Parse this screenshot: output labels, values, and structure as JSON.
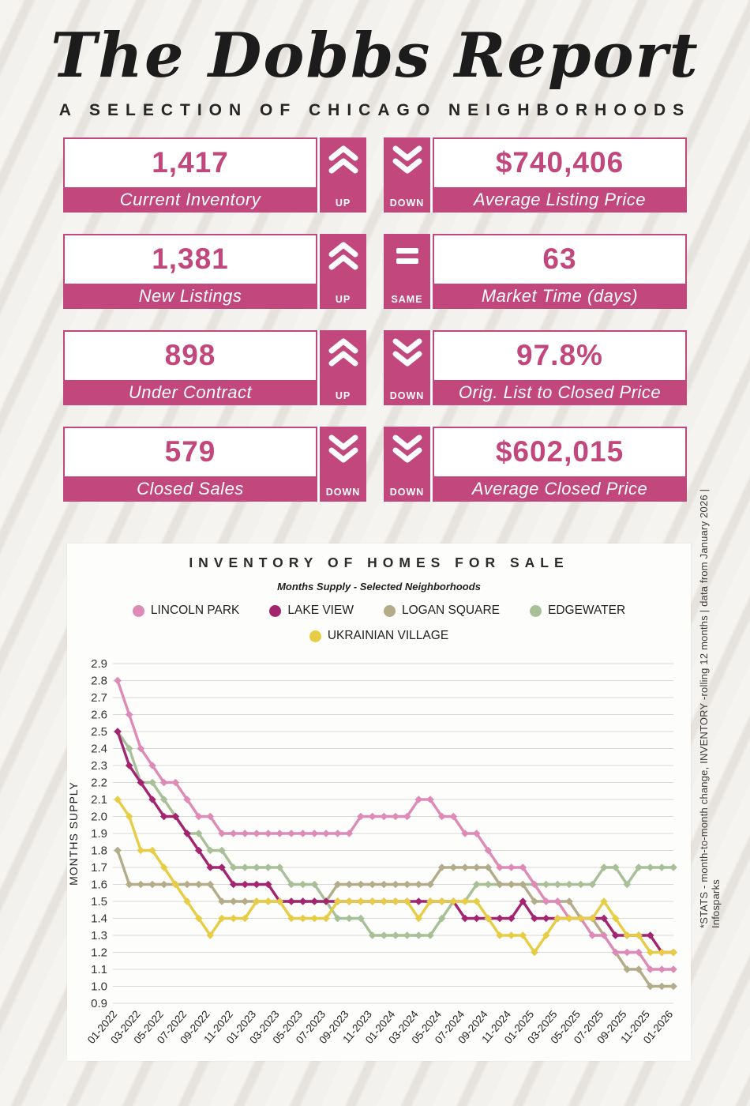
{
  "header": {
    "title": "The Dobbs Report",
    "subtitle": "A SELECTION OF CHICAGO NEIGHBORHOODS"
  },
  "colors": {
    "accent_pink": "#c1477d",
    "panel_bg": "#fdfdfc",
    "grid_line": "#d9d9d9",
    "text_dark": "#2b2b2b"
  },
  "stats": [
    {
      "value": "1,417",
      "label": "Current Inventory",
      "trend": "UP"
    },
    {
      "value": "$740,406",
      "label": "Average Listing Price",
      "trend": "DOWN"
    },
    {
      "value": "1,381",
      "label": "New Listings",
      "trend": "UP"
    },
    {
      "value": "63",
      "label": "Market Time (days)",
      "trend": "SAME"
    },
    {
      "value": "898",
      "label": "Under Contract",
      "trend": "UP"
    },
    {
      "value": "97.8%",
      "label": "Orig. List to Closed Price",
      "trend": "DOWN"
    },
    {
      "value": "579",
      "label": "Closed Sales",
      "trend": "DOWN"
    },
    {
      "value": "$602,015",
      "label": "Average Closed Price",
      "trend": "DOWN"
    }
  ],
  "footnote": "*STATS - month-to-month change, INVENTORY -rolling 12 months | data from January 2026 | Infosparks",
  "chart_data": {
    "type": "line",
    "title": "INVENTORY OF HOMES FOR SALE",
    "subtitle": "Months Supply - Selected Neighborhoods",
    "ylabel": "MONTHS SUPPLY",
    "ylim": [
      0.9,
      2.9
    ],
    "ytick_step": 0.1,
    "grid": true,
    "legend_position": "top",
    "marker": "diamond",
    "xtick_label_every": 2,
    "x": [
      "01-2022",
      "02-2022",
      "03-2022",
      "04-2022",
      "05-2022",
      "06-2022",
      "07-2022",
      "08-2022",
      "09-2022",
      "10-2022",
      "11-2022",
      "12-2022",
      "01-2023",
      "02-2023",
      "03-2023",
      "04-2023",
      "05-2023",
      "06-2023",
      "07-2023",
      "08-2023",
      "09-2023",
      "10-2023",
      "11-2023",
      "12-2023",
      "01-2024",
      "02-2024",
      "03-2024",
      "04-2024",
      "05-2024",
      "06-2024",
      "07-2024",
      "08-2024",
      "09-2024",
      "10-2024",
      "11-2024",
      "12-2024",
      "01-2025",
      "02-2025",
      "03-2025",
      "04-2025",
      "05-2025",
      "06-2025",
      "07-2025",
      "08-2025",
      "09-2025",
      "10-2025",
      "11-2025",
      "12-2025",
      "01-2026"
    ],
    "series": [
      {
        "name": "LINCOLN PARK",
        "color": "#dd8ab7",
        "values": [
          2.8,
          2.6,
          2.4,
          2.3,
          2.2,
          2.2,
          2.1,
          2.0,
          2.0,
          1.9,
          1.9,
          1.9,
          1.9,
          1.9,
          1.9,
          1.9,
          1.9,
          1.9,
          1.9,
          1.9,
          1.9,
          2.0,
          2.0,
          2.0,
          2.0,
          2.0,
          2.1,
          2.1,
          2.0,
          2.0,
          1.9,
          1.9,
          1.8,
          1.7,
          1.7,
          1.7,
          1.6,
          1.5,
          1.5,
          1.4,
          1.4,
          1.3,
          1.3,
          1.2,
          1.2,
          1.2,
          1.1,
          1.1,
          1.1
        ]
      },
      {
        "name": "LAKE VIEW",
        "color": "#a3246f",
        "values": [
          2.5,
          2.3,
          2.2,
          2.1,
          2.0,
          2.0,
          1.9,
          1.8,
          1.7,
          1.7,
          1.6,
          1.6,
          1.6,
          1.6,
          1.5,
          1.5,
          1.5,
          1.5,
          1.5,
          1.5,
          1.5,
          1.5,
          1.5,
          1.5,
          1.5,
          1.5,
          1.5,
          1.5,
          1.5,
          1.5,
          1.4,
          1.4,
          1.4,
          1.4,
          1.4,
          1.5,
          1.4,
          1.4,
          1.4,
          1.4,
          1.4,
          1.4,
          1.4,
          1.3,
          1.3,
          1.3,
          1.3,
          1.2,
          1.2
        ]
      },
      {
        "name": "LOGAN SQUARE",
        "color": "#b3ab89",
        "values": [
          1.8,
          1.6,
          1.6,
          1.6,
          1.6,
          1.6,
          1.6,
          1.6,
          1.6,
          1.5,
          1.5,
          1.5,
          1.5,
          1.5,
          1.5,
          1.5,
          1.5,
          1.5,
          1.5,
          1.6,
          1.6,
          1.6,
          1.6,
          1.6,
          1.6,
          1.6,
          1.6,
          1.6,
          1.7,
          1.7,
          1.7,
          1.7,
          1.7,
          1.6,
          1.6,
          1.6,
          1.5,
          1.5,
          1.5,
          1.5,
          1.4,
          1.4,
          1.3,
          1.2,
          1.1,
          1.1,
          1.0,
          1.0,
          1.0
        ]
      },
      {
        "name": "EDGEWATER",
        "color": "#a7c098",
        "values": [
          2.5,
          2.4,
          2.2,
          2.2,
          2.1,
          2.0,
          1.9,
          1.9,
          1.8,
          1.8,
          1.7,
          1.7,
          1.7,
          1.7,
          1.7,
          1.6,
          1.6,
          1.6,
          1.5,
          1.4,
          1.4,
          1.4,
          1.3,
          1.3,
          1.3,
          1.3,
          1.3,
          1.3,
          1.4,
          1.5,
          1.5,
          1.6,
          1.6,
          1.6,
          1.6,
          1.6,
          1.6,
          1.6,
          1.6,
          1.6,
          1.6,
          1.6,
          1.7,
          1.7,
          1.6,
          1.7,
          1.7,
          1.7,
          1.7
        ]
      },
      {
        "name": "UKRAINIAN VILLAGE",
        "color": "#e7cd46",
        "values": [
          2.1,
          2.0,
          1.8,
          1.8,
          1.7,
          1.6,
          1.5,
          1.4,
          1.3,
          1.4,
          1.4,
          1.4,
          1.5,
          1.5,
          1.5,
          1.4,
          1.4,
          1.4,
          1.4,
          1.5,
          1.5,
          1.5,
          1.5,
          1.5,
          1.5,
          1.5,
          1.4,
          1.5,
          1.5,
          1.5,
          1.5,
          1.5,
          1.4,
          1.3,
          1.3,
          1.3,
          1.2,
          1.3,
          1.4,
          1.4,
          1.4,
          1.4,
          1.5,
          1.4,
          1.3,
          1.3,
          1.2,
          1.2,
          1.2
        ]
      }
    ]
  }
}
